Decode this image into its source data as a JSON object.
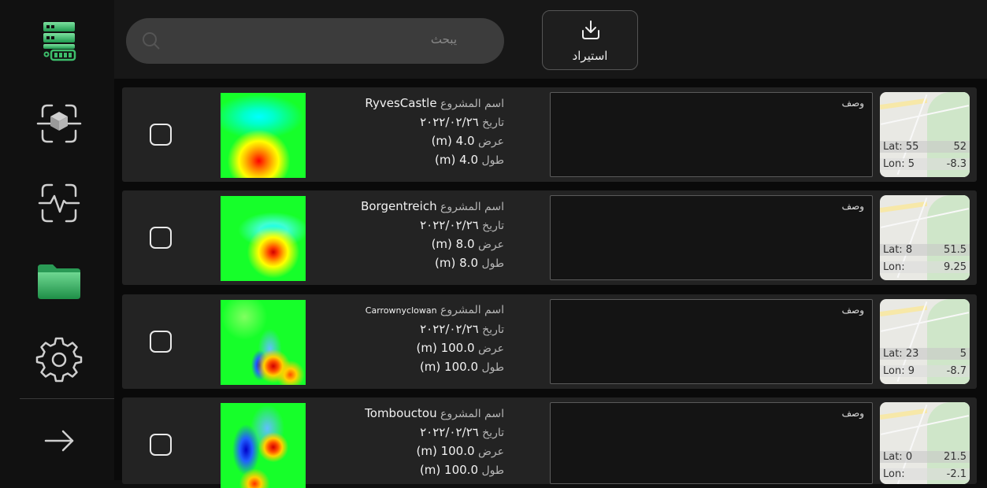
{
  "search": {
    "placeholder": "يبحث"
  },
  "import": {
    "label": "استيراد"
  },
  "sidebar": {
    "items": [
      {
        "icon": "server-icon",
        "active": true
      },
      {
        "icon": "scan-3d-icon"
      },
      {
        "icon": "scan-activity-icon"
      },
      {
        "icon": "folder-icon",
        "active": true
      },
      {
        "icon": "gear-icon"
      },
      {
        "icon": "arrow-right-icon"
      }
    ]
  },
  "labels": {
    "project_name": "اسم المشروع",
    "date": "تاريخ",
    "width": "عرض",
    "length": "طول",
    "description": "وصف",
    "lat": "Lat:",
    "lon": "Lon:"
  },
  "projects": [
    {
      "name": "RyvesCastle",
      "date": "٢٠٢٢/٠٢/٢٦",
      "width": "4.0 (m)",
      "length": "4.0 (m)",
      "lat_a": "55",
      "lat_b": "52",
      "lon_a": "5",
      "lon_b": "-8.3"
    },
    {
      "name": "Borgentreich",
      "date": "٢٠٢٢/٠٢/٢٦",
      "width": "8.0 (m)",
      "length": "8.0 (m)",
      "lat_a": "8",
      "lat_b": "51.5",
      "lon_a": "",
      "lon_b": "9.25"
    },
    {
      "name": "Carrownyclowan",
      "date": "٢٠٢٢/٠٢/٢٦",
      "width": "100.0 (m)",
      "length": "100.0 (m)",
      "lat_a": "23",
      "lat_b": "5",
      "lon_a": "9",
      "lon_b": "-8.7"
    },
    {
      "name": "Tombouctou",
      "date": "٢٠٢٢/٠٢/٢٦",
      "width": "100.0 (m)",
      "length": "100.0 (m)",
      "lat_a": "0",
      "lat_b": "21.5",
      "lon_a": "",
      "lon_b": "-2.1"
    }
  ],
  "colors": {
    "accent": "#3dbd6b",
    "background": "#0f0f0f"
  }
}
